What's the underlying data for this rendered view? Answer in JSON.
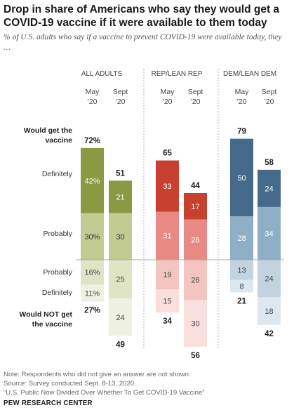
{
  "title": "Drop in share of Americans who say they would get a COVID-19 vaccine if it were available to them today",
  "subtitle": "% of U.S. adults who say if a vaccine to prevent COVID-19 were available today, they …",
  "groups": [
    "ALL ADULTS",
    "REP/LEAN REP",
    "DEM/LEAN DEM"
  ],
  "periods": [
    "May\n’20",
    "Sept\n’20"
  ],
  "row_labels": {
    "would_get": "Would get the vaccine",
    "definitely_yes": "Definitely",
    "probably_yes": "Probably",
    "probably_no": "Probably",
    "definitely_no": "Definitely",
    "would_not": "Would NOT get the vaccine"
  },
  "chart_data": {
    "type": "bar",
    "ylim": [
      -60,
      80
    ],
    "groups": [
      {
        "name": "ALL ADULTS",
        "periods": [
          {
            "label": "May '20",
            "definitely": 42,
            "probably": 30,
            "would_get": 72,
            "probably_not": 16,
            "definitely_not": 11,
            "would_not": 27,
            "would_get_label": "72%",
            "would_not_label": "27%",
            "definitely_label": "42%",
            "probably_label": "30%",
            "probably_not_label": "16%",
            "definitely_not_label": "11%"
          },
          {
            "label": "Sept '20",
            "definitely": 21,
            "probably": 30,
            "would_get": 51,
            "probably_not": 25,
            "definitely_not": 24,
            "would_not": 49,
            "would_get_label": "51",
            "would_not_label": "49",
            "definitely_label": "21",
            "probably_label": "30",
            "probably_not_label": "25",
            "definitely_not_label": "24"
          }
        ]
      },
      {
        "name": "REP/LEAN REP",
        "periods": [
          {
            "label": "May '20",
            "definitely": 33,
            "probably": 31,
            "would_get": 65,
            "probably_not": 19,
            "definitely_not": 15,
            "would_not": 34,
            "would_get_label": "65",
            "would_not_label": "34",
            "definitely_label": "33",
            "probably_label": "31",
            "probably_not_label": "19",
            "definitely_not_label": "15"
          },
          {
            "label": "Sept '20",
            "definitely": 17,
            "probably": 26,
            "would_get": 44,
            "probably_not": 26,
            "definitely_not": 30,
            "would_not": 56,
            "would_get_label": "44",
            "would_not_label": "56",
            "definitely_label": "17",
            "probably_label": "26",
            "probably_not_label": "26",
            "definitely_not_label": "30"
          }
        ]
      },
      {
        "name": "DEM/LEAN DEM",
        "periods": [
          {
            "label": "May '20",
            "definitely": 50,
            "probably": 28,
            "would_get": 79,
            "probably_not": 13,
            "definitely_not": 8,
            "would_not": 21,
            "would_get_label": "79",
            "would_not_label": "21",
            "definitely_label": "50",
            "probably_label": "28",
            "probably_not_label": "13",
            "definitely_not_label": "8"
          },
          {
            "label": "Sept '20",
            "definitely": 24,
            "probably": 34,
            "would_get": 58,
            "probably_not": 24,
            "definitely_not": 18,
            "would_not": 42,
            "would_get_label": "58",
            "would_not_label": "42",
            "definitely_label": "24",
            "probably_label": "34",
            "probably_not_label": "24",
            "definitely_not_label": "18"
          }
        ]
      }
    ]
  },
  "colors": {
    "all": {
      "definitely": "#899a43",
      "probably": "#c2cb91",
      "probably_not": "#dfe4c4",
      "definitely_not": "#eef1e0"
    },
    "rep": {
      "definitely": "#c8402f",
      "probably": "#e88a83",
      "probably_not": "#f3c5c1",
      "definitely_not": "#f8dfdc"
    },
    "dem": {
      "definitely": "#466b8a",
      "probably": "#8fafc6",
      "probably_not": "#c2d3e0",
      "definitely_not": "#dde7ef"
    },
    "divider": "#999999",
    "baseline": "#aaaaaa"
  },
  "notes": [
    "Note: Respondents who did not give an answer are not shown.",
    "Source: Survey conducted Sept. 8-13, 2020.",
    "“U.S. Public Now Divided Over Whether To Get COVID-19 Vaccine”"
  ],
  "brand": "PEW RESEARCH CENTER"
}
